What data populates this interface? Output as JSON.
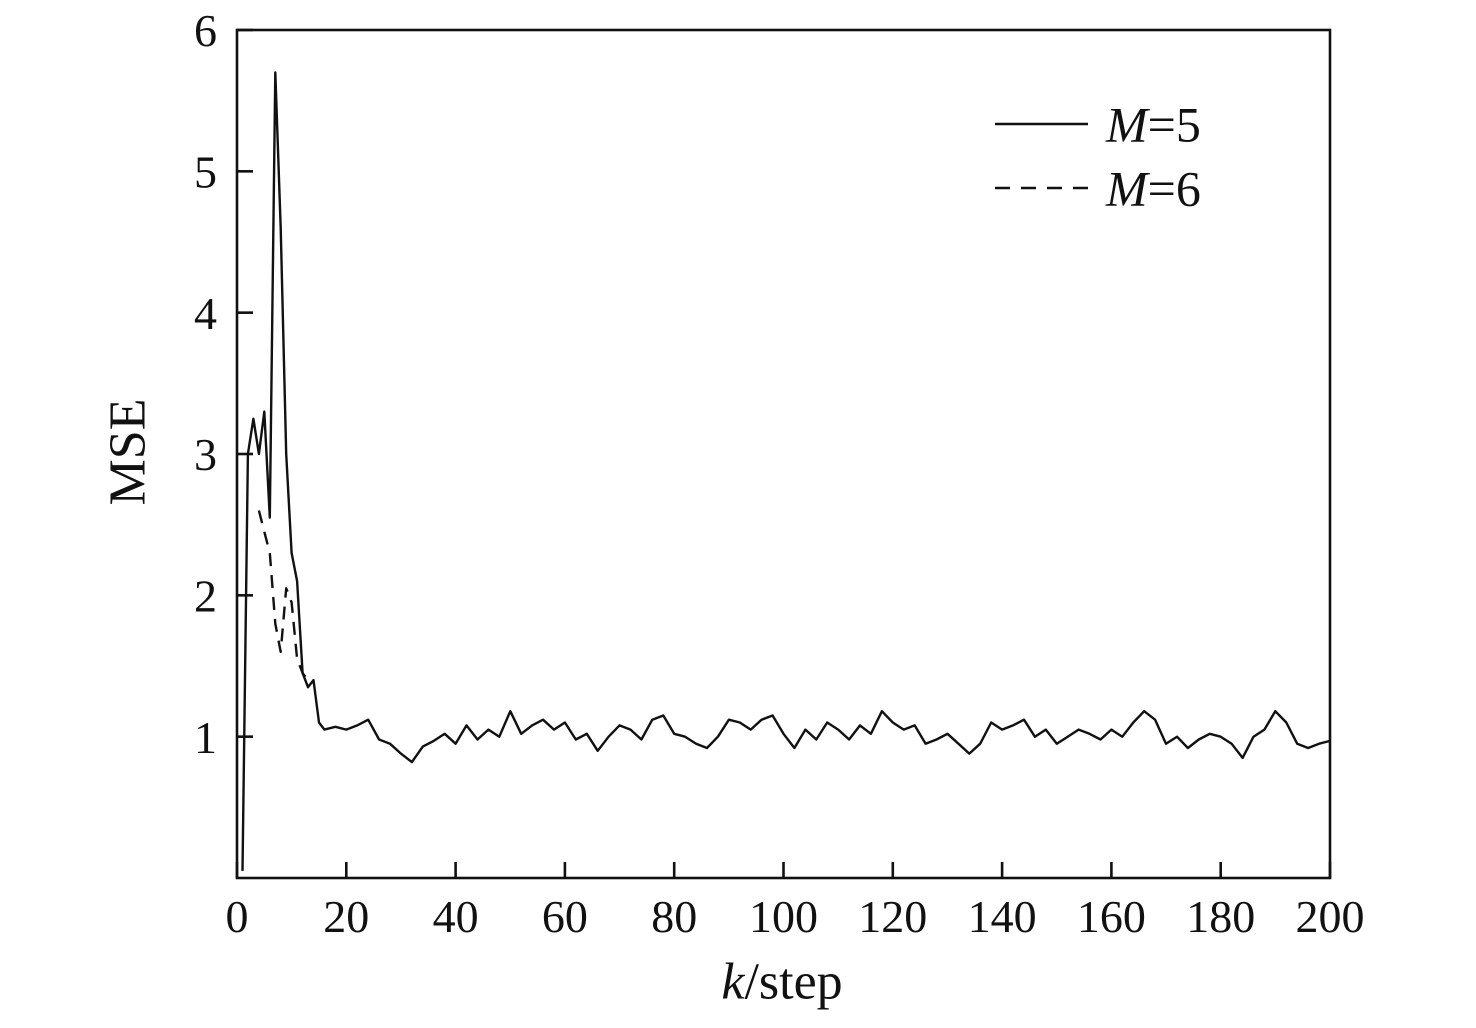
{
  "figure": {
    "background": "#ffffff",
    "line_color": "#111111"
  },
  "labels": {
    "ylabel": "MSE",
    "xlabel_var": "k",
    "xlabel_rest": "/step"
  },
  "chart_data": {
    "type": "line",
    "title": "",
    "xlabel": "k/step",
    "ylabel": "MSE",
    "xlim": [
      0,
      200
    ],
    "ylim": [
      0,
      6
    ],
    "x_ticks": [
      0,
      20,
      40,
      60,
      80,
      100,
      120,
      140,
      160,
      180,
      200
    ],
    "x_tick_labels": [
      "0",
      "20",
      "40",
      "60",
      "80",
      "100",
      "120",
      "140",
      "160",
      "180",
      "200"
    ],
    "y_ticks": [
      1,
      2,
      3,
      4,
      5,
      6
    ],
    "y_tick_labels": [
      "1",
      "2",
      "3",
      "4",
      "5",
      "6"
    ],
    "grid": false,
    "legend_position": "upper right",
    "legend": [
      {
        "var": "M",
        "rest": "=5",
        "label": "M=5",
        "style": "solid"
      },
      {
        "var": "M",
        "rest": "=6",
        "label": "M=6",
        "style": "dashed"
      }
    ],
    "series": [
      {
        "name": "M=5",
        "style": "solid",
        "x": [
          1,
          2,
          3,
          4,
          5,
          6,
          7,
          8,
          9,
          10,
          11,
          12,
          13,
          14,
          15,
          16,
          18,
          20,
          22,
          24,
          26,
          28,
          30,
          32,
          34,
          36,
          38,
          40,
          42,
          44,
          46,
          48,
          50,
          52,
          54,
          56,
          58,
          60,
          62,
          64,
          66,
          68,
          70,
          72,
          74,
          76,
          78,
          80,
          82,
          84,
          86,
          88,
          90,
          92,
          94,
          96,
          98,
          100,
          102,
          104,
          106,
          108,
          110,
          112,
          114,
          116,
          118,
          120,
          122,
          124,
          126,
          128,
          130,
          132,
          134,
          136,
          138,
          140,
          142,
          144,
          146,
          148,
          150,
          152,
          154,
          156,
          158,
          160,
          162,
          164,
          166,
          168,
          170,
          172,
          174,
          176,
          178,
          180,
          182,
          184,
          186,
          188,
          190,
          192,
          194,
          196,
          198,
          200
        ],
        "y": [
          0.05,
          3.0,
          3.25,
          3.0,
          3.3,
          2.55,
          5.7,
          4.6,
          3.0,
          2.3,
          2.1,
          1.45,
          1.35,
          1.4,
          1.1,
          1.05,
          1.07,
          1.05,
          1.08,
          1.12,
          0.98,
          0.95,
          0.88,
          0.82,
          0.93,
          0.97,
          1.02,
          0.95,
          1.08,
          0.98,
          1.05,
          1.0,
          1.18,
          1.02,
          1.08,
          1.12,
          1.05,
          1.1,
          0.98,
          1.02,
          0.9,
          1.0,
          1.08,
          1.05,
          0.98,
          1.12,
          1.15,
          1.02,
          1.0,
          0.95,
          0.92,
          1.0,
          1.12,
          1.1,
          1.05,
          1.12,
          1.15,
          1.02,
          0.92,
          1.05,
          0.98,
          1.1,
          1.05,
          0.98,
          1.08,
          1.02,
          1.18,
          1.1,
          1.05,
          1.08,
          0.95,
          0.98,
          1.02,
          0.95,
          0.88,
          0.95,
          1.1,
          1.05,
          1.08,
          1.12,
          1.0,
          1.05,
          0.95,
          1.0,
          1.05,
          1.02,
          0.98,
          1.05,
          1.0,
          1.1,
          1.18,
          1.12,
          0.95,
          1.0,
          0.92,
          0.98,
          1.02,
          1.0,
          0.95,
          0.85,
          1.0,
          1.05,
          1.18,
          1.1,
          0.95,
          0.92,
          0.95,
          0.97
        ]
      },
      {
        "name": "M=6",
        "style": "dashed",
        "x": [
          4,
          5,
          6,
          7,
          8,
          9,
          10,
          11,
          12,
          13
        ],
        "y": [
          2.6,
          2.45,
          2.3,
          1.8,
          1.6,
          2.05,
          1.95,
          1.55,
          1.45,
          1.4
        ]
      }
    ]
  }
}
